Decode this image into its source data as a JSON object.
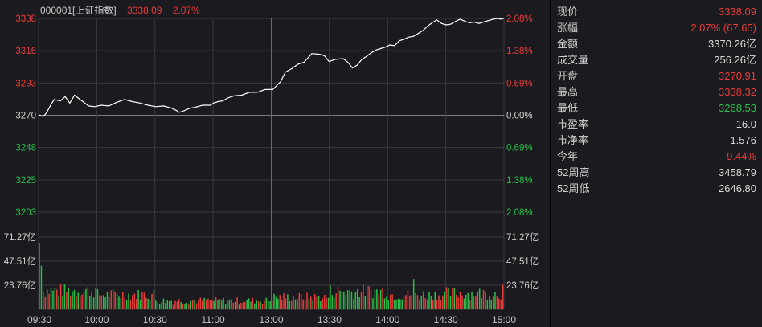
{
  "header": {
    "code_name": "000001[上证指数]",
    "price": "3338.09",
    "change_pct": "2.07%"
  },
  "colors": {
    "up": "#e83b3b",
    "down": "#2bbf4a",
    "line": "#ffffff",
    "grid": "#3a3a40",
    "background": "#1b1b1f"
  },
  "info_panel": [
    {
      "label": "现价",
      "value": "3338.09",
      "color": "red"
    },
    {
      "label": "涨幅",
      "value": "2.07% (67.65)",
      "color": "red"
    },
    {
      "label": "金额",
      "value": "3370.26亿",
      "color": "white"
    },
    {
      "label": "成交量",
      "value": "256.26亿",
      "color": "white"
    },
    {
      "label": "开盘",
      "value": "3270.91",
      "color": "red"
    },
    {
      "label": "最高",
      "value": "3338.32",
      "color": "red"
    },
    {
      "label": "最低",
      "value": "3268.53",
      "color": "green"
    },
    {
      "label": "市盈率",
      "value": "16.0",
      "color": "white"
    },
    {
      "label": "市净率",
      "value": "1.576",
      "color": "white"
    },
    {
      "label": "今年",
      "value": "9.44%",
      "color": "red"
    },
    {
      "label": "52周高",
      "value": "3458.79",
      "color": "white"
    },
    {
      "label": "52周低",
      "value": "2646.80",
      "color": "white"
    }
  ],
  "chart_data": {
    "type": "line",
    "prev_close": 3270,
    "ylim": [
      3203,
      3338
    ],
    "price_ticks_left": [
      "3338",
      "3316",
      "3293",
      "3270",
      "3248",
      "3225",
      "3203"
    ],
    "pct_ticks_right": [
      "2.08%",
      "1.38%",
      "0.69%",
      "0.00%",
      "0.69%",
      "1.38%",
      "2.08%"
    ],
    "volume_ticks": [
      "71.27亿",
      "47.51亿",
      "23.76亿"
    ],
    "volume_max": 95.02,
    "x_ticks": [
      "09:30",
      "10:00",
      "10:30",
      "11:00",
      "13:00",
      "13:30",
      "14:00",
      "14:30",
      "15:00"
    ],
    "price_points": [
      [
        0,
        3270.9
      ],
      [
        3,
        3269.6
      ],
      [
        5,
        3272.0
      ],
      [
        8,
        3278.0
      ],
      [
        10,
        3281.5
      ],
      [
        14,
        3280.5
      ],
      [
        17,
        3283.5
      ],
      [
        20,
        3279.0
      ],
      [
        23,
        3284.5
      ],
      [
        26,
        3282.0
      ],
      [
        29,
        3279.5
      ],
      [
        32,
        3277.0
      ],
      [
        36,
        3276.5
      ],
      [
        40,
        3277.5
      ],
      [
        45,
        3277.0
      ],
      [
        50,
        3279.5
      ],
      [
        55,
        3281.5
      ],
      [
        60,
        3280.0
      ],
      [
        65,
        3279.0
      ],
      [
        70,
        3277.5
      ],
      [
        75,
        3276.5
      ],
      [
        80,
        3277.0
      ],
      [
        85,
        3275.5
      ],
      [
        88,
        3274.0
      ],
      [
        90,
        3272.5
      ],
      [
        93,
        3273.5
      ],
      [
        97,
        3275.5
      ],
      [
        100,
        3276.0
      ],
      [
        105,
        3277.5
      ],
      [
        110,
        3277.5
      ],
      [
        112,
        3279.0
      ],
      [
        115,
        3280.0
      ],
      [
        118,
        3280.5
      ],
      [
        121,
        3282.5
      ],
      [
        125,
        3284.0
      ],
      [
        130,
        3284.5
      ],
      [
        135,
        3286.5
      ],
      [
        140,
        3286.5
      ],
      [
        145,
        3288.5
      ],
      [
        150,
        3288.5
      ],
      [
        155,
        3294.0
      ],
      [
        158,
        3300.5
      ],
      [
        162,
        3303.0
      ],
      [
        166,
        3306.0
      ],
      [
        170,
        3307.5
      ],
      [
        175,
        3313.5
      ],
      [
        180,
        3313.0
      ],
      [
        183,
        3312.0
      ],
      [
        186,
        3308.0
      ],
      [
        190,
        3309.5
      ],
      [
        195,
        3310.0
      ],
      [
        198,
        3307.5
      ],
      [
        201,
        3303.5
      ],
      [
        204,
        3305.5
      ],
      [
        207,
        3309.5
      ],
      [
        210,
        3311.5
      ],
      [
        213,
        3314.0
      ],
      [
        216,
        3316.0
      ],
      [
        219,
        3317.0
      ],
      [
        222,
        3318.0
      ],
      [
        225,
        3319.5
      ],
      [
        228,
        3319.0
      ],
      [
        231,
        3322.5
      ],
      [
        234,
        3323.5
      ],
      [
        237,
        3325.0
      ],
      [
        240,
        3325.5
      ],
      [
        243,
        3327.5
      ],
      [
        246,
        3329.5
      ],
      [
        249,
        3332.5
      ],
      [
        252,
        3335.0
      ],
      [
        255,
        3337.0
      ],
      [
        258,
        3334.5
      ],
      [
        261,
        3333.5
      ],
      [
        264,
        3334.0
      ],
      [
        267,
        3336.0
      ],
      [
        270,
        3337.5
      ],
      [
        273,
        3336.0
      ],
      [
        276,
        3335.0
      ],
      [
        279,
        3335.5
      ],
      [
        282,
        3334.5
      ],
      [
        285,
        3335.5
      ],
      [
        288,
        3336.5
      ],
      [
        291,
        3337.5
      ],
      [
        294,
        3338.0
      ],
      [
        296,
        3337.5
      ],
      [
        298,
        3338.1
      ]
    ]
  }
}
